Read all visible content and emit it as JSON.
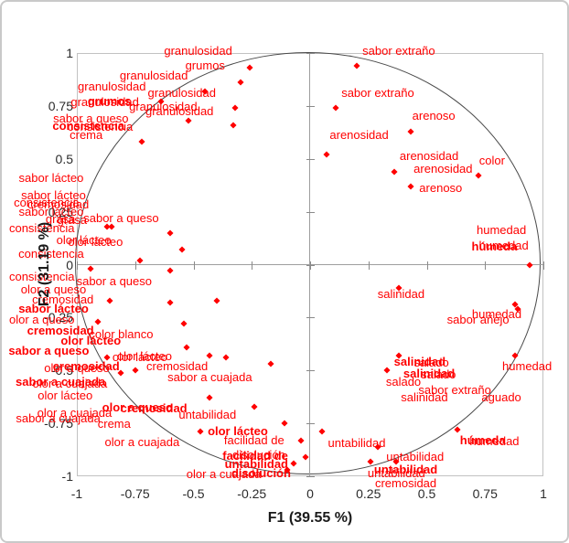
{
  "chart_data": {
    "type": "scatter",
    "description": "PCA correlation circle biplot of sensory attributes",
    "xlabel": "F1 (39.55 %)",
    "ylabel": "F2 (31.19 %)",
    "xlim": [
      -1,
      1
    ],
    "ylim": [
      -1,
      1
    ],
    "grid": false,
    "point_color": "#FF0000",
    "label_color": "#FF0000",
    "ticks": {
      "x": [
        {
          "v": -1,
          "l": "-1"
        },
        {
          "v": -0.75,
          "l": "-0.75"
        },
        {
          "v": -0.5,
          "l": "-0.5"
        },
        {
          "v": -0.25,
          "l": "-0.25"
        },
        {
          "v": 0,
          "l": "0"
        },
        {
          "v": 0.25,
          "l": "0.25"
        },
        {
          "v": 0.5,
          "l": "0.5"
        },
        {
          "v": 0.75,
          "l": "0.75"
        },
        {
          "v": 1,
          "l": "1"
        }
      ],
      "y": [
        {
          "v": 1,
          "l": "1"
        },
        {
          "v": 0.75,
          "l": "0.75"
        },
        {
          "v": 0.5,
          "l": "0.5"
        },
        {
          "v": 0.25,
          "l": "0.25"
        },
        {
          "v": 0,
          "l": "0"
        },
        {
          "v": -0.25,
          "l": "-0.25"
        },
        {
          "v": -0.5,
          "l": "-0.5"
        },
        {
          "v": -0.75,
          "l": "-0.75"
        },
        {
          "v": -1,
          "l": "-1"
        }
      ]
    },
    "labels": [
      {
        "t": "granulosidad",
        "x": -0.48,
        "y": 1.01
      },
      {
        "t": "sabor extraño",
        "x": 0.38,
        "y": 1.01
      },
      {
        "t": "grumos",
        "x": -0.45,
        "y": 0.94
      },
      {
        "t": "granulosidad",
        "x": -0.67,
        "y": 0.89
      },
      {
        "t": "granulosidad",
        "x": -0.85,
        "y": 0.84
      },
      {
        "t": "granulosidad",
        "x": -0.55,
        "y": 0.81
      },
      {
        "t": "grumos",
        "x": -0.86,
        "y": 0.77,
        "b": 1
      },
      {
        "t": "granulosidad",
        "x": -0.88,
        "y": 0.765
      },
      {
        "t": "granulosidad",
        "x": -0.63,
        "y": 0.745
      },
      {
        "t": "granulosidad",
        "x": -0.56,
        "y": 0.725
      },
      {
        "t": "sabor a queso",
        "x": -0.94,
        "y": 0.69
      },
      {
        "t": "consistencia",
        "x": -0.95,
        "y": 0.655,
        "b": 1
      },
      {
        "t": "consistencia",
        "x": -0.9,
        "y": 0.65
      },
      {
        "t": "crema",
        "x": -0.96,
        "y": 0.61
      },
      {
        "t": "sabor extraño",
        "x": 0.29,
        "y": 0.81
      },
      {
        "t": "arenoso",
        "x": 0.53,
        "y": 0.7
      },
      {
        "t": "arenosidad",
        "x": 0.21,
        "y": 0.61
      },
      {
        "t": "arenosidad",
        "x": 0.51,
        "y": 0.51
      },
      {
        "t": "arenosidad",
        "x": 0.57,
        "y": 0.45
      },
      {
        "t": "color",
        "x": 0.78,
        "y": 0.49
      },
      {
        "t": "arenoso",
        "x": 0.56,
        "y": 0.36
      },
      {
        "t": "sabor lácteo",
        "x": -1.11,
        "y": 0.41
      },
      {
        "t": "sabor lácteo",
        "x": -1.1,
        "y": 0.325
      },
      {
        "t": "consistencia",
        "x": -1.13,
        "y": 0.29
      },
      {
        "t": "cremosidad",
        "x": -1.08,
        "y": 0.285
      },
      {
        "t": "sabor lácteo",
        "x": -1.11,
        "y": 0.25
      },
      {
        "t": "grasa",
        "x": -1.07,
        "y": 0.215
      },
      {
        "t": "grasa",
        "x": -1.02,
        "y": 0.21
      },
      {
        "t": "sabor a queso",
        "x": -0.81,
        "y": 0.22
      },
      {
        "t": "consistencia",
        "x": -1.15,
        "y": 0.17
      },
      {
        "t": "olor lácteo",
        "x": -0.97,
        "y": 0.115
      },
      {
        "t": "olor lácteo",
        "x": -0.92,
        "y": 0.105
      },
      {
        "t": "consistencia",
        "x": -1.11,
        "y": 0.05
      },
      {
        "t": "consistencia",
        "x": -1.15,
        "y": -0.06
      },
      {
        "t": "sabor a queso",
        "x": -0.84,
        "y": -0.08
      },
      {
        "t": "olor a queso",
        "x": -1.1,
        "y": -0.12
      },
      {
        "t": "cremosidad",
        "x": -1.06,
        "y": -0.165
      },
      {
        "t": "sabor lácteo",
        "x": -1.1,
        "y": -0.21,
        "b": 1
      },
      {
        "t": "olor a queso",
        "x": -1.15,
        "y": -0.26
      },
      {
        "t": "cremosidad",
        "x": -1.07,
        "y": -0.315,
        "b": 1
      },
      {
        "t": "color blanco",
        "x": -0.81,
        "y": -0.33
      },
      {
        "t": "olor lácteo",
        "x": -0.94,
        "y": -0.36,
        "b": 1
      },
      {
        "t": "sabor a queso",
        "x": -1.12,
        "y": -0.41,
        "b": 1
      },
      {
        "t": "olor lácteo",
        "x": -0.73,
        "y": -0.44
      },
      {
        "t": "cremosidad",
        "x": -0.96,
        "y": -0.48,
        "b": 1
      },
      {
        "t": "olor a queso",
        "x": -1.0,
        "y": -0.49
      },
      {
        "t": "sabor a cuajada",
        "x": -1.07,
        "y": -0.555,
        "b": 1
      },
      {
        "t": "olor a cuajada",
        "x": -1.03,
        "y": -0.565
      },
      {
        "t": "olor lácteo",
        "x": -1.05,
        "y": -0.62
      },
      {
        "t": "sabor a cuajada",
        "x": -1.08,
        "y": -0.73
      },
      {
        "t": "crema",
        "x": -0.84,
        "y": -0.755
      },
      {
        "t": "olor a cuajada",
        "x": -1.01,
        "y": -0.7
      },
      {
        "t": "olor a cuajada",
        "x": -0.72,
        "y": -0.84
      },
      {
        "t": "olor lácteo",
        "x": -0.71,
        "y": -0.435
      },
      {
        "t": "cremosidad",
        "x": -0.57,
        "y": -0.48
      },
      {
        "t": "sabor a cuajada",
        "x": -0.43,
        "y": -0.535
      },
      {
        "t": "olor a queso",
        "x": -0.74,
        "y": -0.675,
        "b": 1
      },
      {
        "t": "cremosidad",
        "x": -0.67,
        "y": -0.68,
        "b": 1
      },
      {
        "t": "untabilidad",
        "x": -0.44,
        "y": -0.71
      },
      {
        "t": "olor lácteo",
        "x": -0.31,
        "y": -0.79,
        "b": 1
      },
      {
        "t": "facilidad de",
        "x": -0.24,
        "y": -0.83
      },
      {
        "t": "disolución",
        "x": -0.22,
        "y": -0.9
      },
      {
        "t": "facilidad de",
        "x": -0.235,
        "y": -0.905,
        "b": 1
      },
      {
        "t": "untabilidad",
        "x": -0.23,
        "y": -0.945,
        "b": 1
      },
      {
        "t": "disolución",
        "x": -0.21,
        "y": -0.985,
        "b": 1
      },
      {
        "t": "olor a cuajada",
        "x": -0.37,
        "y": -0.99
      },
      {
        "t": "untabilidad",
        "x": 0.2,
        "y": -0.845
      },
      {
        "t": "untabilidad",
        "x": 0.45,
        "y": -0.91
      },
      {
        "t": "untabilidad",
        "x": 0.41,
        "y": -0.97,
        "b": 1
      },
      {
        "t": "untabilidad",
        "x": 0.37,
        "y": -0.985
      },
      {
        "t": "cremosidad",
        "x": 0.41,
        "y": -1.035
      },
      {
        "t": "salinidad",
        "x": 0.47,
        "y": -0.46,
        "b": 1
      },
      {
        "t": "salado",
        "x": 0.52,
        "y": -0.465
      },
      {
        "t": "salinidad",
        "x": 0.51,
        "y": -0.515,
        "b": 1
      },
      {
        "t": "salado",
        "x": 0.55,
        "y": -0.52
      },
      {
        "t": "salado",
        "x": 0.4,
        "y": -0.555
      },
      {
        "t": "sabor extraño",
        "x": 0.62,
        "y": -0.595
      },
      {
        "t": "salinidad",
        "x": 0.49,
        "y": -0.63
      },
      {
        "t": "aguado",
        "x": 0.82,
        "y": -0.63
      },
      {
        "t": "humedad",
        "x": 0.93,
        "y": -0.48
      },
      {
        "t": "húmeda",
        "x": 0.74,
        "y": -0.83,
        "b": 1
      },
      {
        "t": "humedad",
        "x": 0.79,
        "y": -0.835
      },
      {
        "t": "humedad",
        "x": 0.82,
        "y": 0.16
      },
      {
        "t": "humedad",
        "x": 0.83,
        "y": 0.09
      },
      {
        "t": "húmeda",
        "x": 0.79,
        "y": 0.085,
        "b": 1
      },
      {
        "t": "salinidad",
        "x": 0.39,
        "y": -0.14
      },
      {
        "t": "humedad",
        "x": 0.8,
        "y": -0.235
      },
      {
        "t": "sabor añejo",
        "x": 0.72,
        "y": -0.26
      }
    ],
    "points": [
      [
        -0.26,
        0.93
      ],
      [
        -0.3,
        0.86
      ],
      [
        -0.45,
        0.82
      ],
      [
        -0.64,
        0.77
      ],
      [
        -0.32,
        0.74
      ],
      [
        -0.52,
        0.68
      ],
      [
        -0.33,
        0.66
      ],
      [
        -0.72,
        0.58
      ],
      [
        -0.87,
        0.18
      ],
      [
        -0.85,
        0.18
      ],
      [
        -0.6,
        0.15
      ],
      [
        -0.73,
        0.02
      ],
      [
        -0.55,
        0.07
      ],
      [
        -0.94,
        -0.02
      ],
      [
        -0.6,
        -0.03
      ],
      [
        -0.86,
        -0.17
      ],
      [
        -0.6,
        -0.18
      ],
      [
        -0.4,
        -0.17
      ],
      [
        -0.91,
        -0.27
      ],
      [
        -0.54,
        -0.28
      ],
      [
        -0.53,
        -0.39
      ],
      [
        -0.87,
        -0.44
      ],
      [
        -0.36,
        -0.44
      ],
      [
        -0.43,
        -0.43
      ],
      [
        -0.81,
        -0.51
      ],
      [
        -0.75,
        -0.5
      ],
      [
        -0.17,
        -0.47
      ],
      [
        -0.43,
        -0.63
      ],
      [
        -0.24,
        -0.67
      ],
      [
        -0.47,
        -0.79
      ],
      [
        -0.11,
        -0.75
      ],
      [
        -0.04,
        -0.83
      ],
      [
        0.05,
        -0.79
      ],
      [
        -0.02,
        -0.91
      ],
      [
        -0.07,
        -0.94
      ],
      [
        -0.1,
        -0.97
      ],
      [
        0.2,
        0.94
      ],
      [
        0.11,
        0.74
      ],
      [
        0.07,
        0.52
      ],
      [
        0.43,
        0.63
      ],
      [
        0.36,
        0.44
      ],
      [
        0.43,
        0.37
      ],
      [
        0.72,
        0.42
      ],
      [
        0.94,
        0.0
      ],
      [
        0.38,
        -0.11
      ],
      [
        0.88,
        -0.19
      ],
      [
        0.89,
        -0.21
      ],
      [
        0.33,
        -0.5
      ],
      [
        0.38,
        -0.43
      ],
      [
        0.88,
        -0.43
      ],
      [
        0.63,
        -0.78
      ],
      [
        0.29,
        -0.86
      ],
      [
        0.26,
        -0.93
      ],
      [
        0.37,
        -0.93
      ]
    ]
  }
}
